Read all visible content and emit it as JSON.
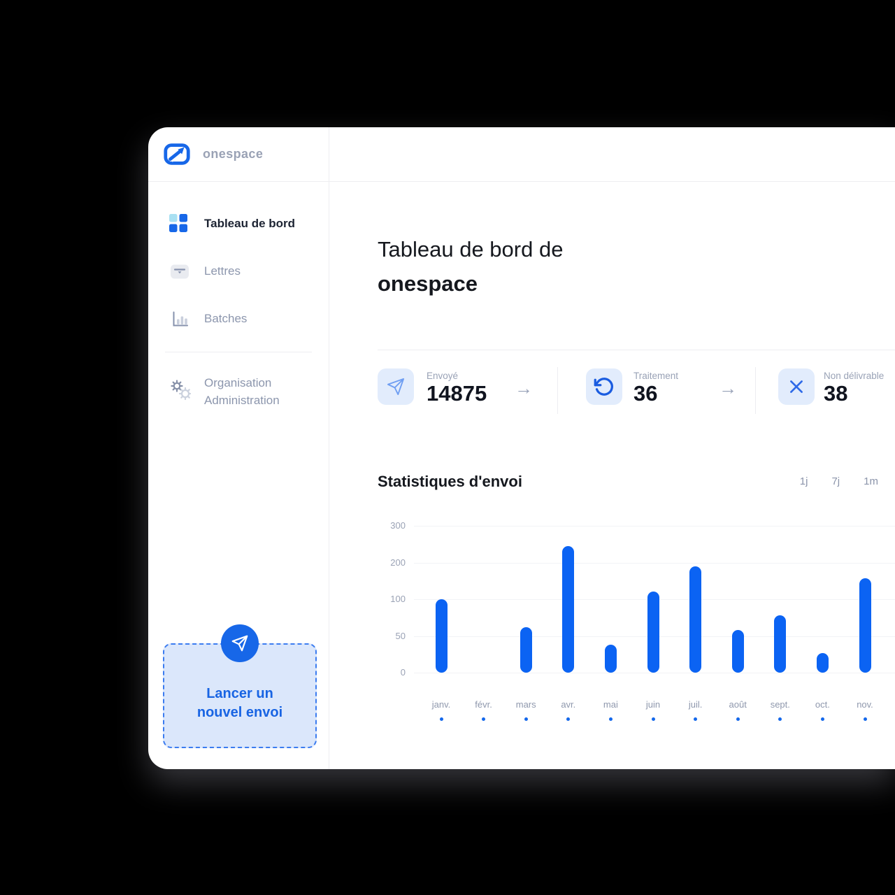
{
  "app": {
    "name": "onespace"
  },
  "sidebar": {
    "items": [
      {
        "label": "Tableau de bord",
        "icon": "dashboard-grid-icon",
        "active": true
      },
      {
        "label": "Lettres",
        "icon": "letter-icon",
        "active": false
      },
      {
        "label": "Batches",
        "icon": "bar-chart-icon",
        "active": false
      },
      {
        "label": "Organisation Administration",
        "icon": "gears-icon",
        "active": false
      }
    ],
    "cta": {
      "label": "Lancer un nouvel envoi",
      "icon": "paper-plane-icon"
    }
  },
  "header": {
    "title_line1": "Tableau de bord de",
    "title_line2": "onespace"
  },
  "stats": {
    "arrow_glyph": "→",
    "cards": [
      {
        "label": "Envoyé",
        "value": "14875",
        "icon": "paper-plane-icon"
      },
      {
        "label": "Traitement",
        "value": "36",
        "icon": "refresh-icon"
      },
      {
        "label": "Non délivrable",
        "value": "38",
        "icon": "x-mark-icon"
      }
    ]
  },
  "chart_section": {
    "title": "Statistiques d'envoi",
    "ranges": [
      "1j",
      "7j",
      "1m"
    ]
  },
  "chart_data": {
    "type": "bar",
    "title": "Statistiques d'envoi",
    "categories": [
      "janv.",
      "févr.",
      "mars",
      "avr.",
      "mai",
      "juin",
      "juil.",
      "août",
      "sept.",
      "oct.",
      "nov."
    ],
    "values": [
      100,
      0,
      62,
      245,
      38,
      122,
      190,
      58,
      78,
      27,
      158
    ],
    "y_ticks": [
      0,
      50,
      100,
      200,
      300
    ],
    "y_axis_note": "non-linear axis: ticks equally spaced",
    "ylim": [
      0,
      300
    ],
    "grid": true,
    "legend": "none",
    "bar_color": "#0b63f3",
    "xlabel": "",
    "ylabel": ""
  },
  "colors": {
    "primary_blue": "#1767e8",
    "bar_blue": "#0b63f3",
    "tile_bg": "#e2ecfc",
    "cta_bg": "#dbe7fb",
    "cta_text": "#1864e3",
    "text_dark": "#15181e",
    "text_gray": "#8c96ad",
    "divider": "#ededf1",
    "gridline": "#f2f3f6"
  }
}
